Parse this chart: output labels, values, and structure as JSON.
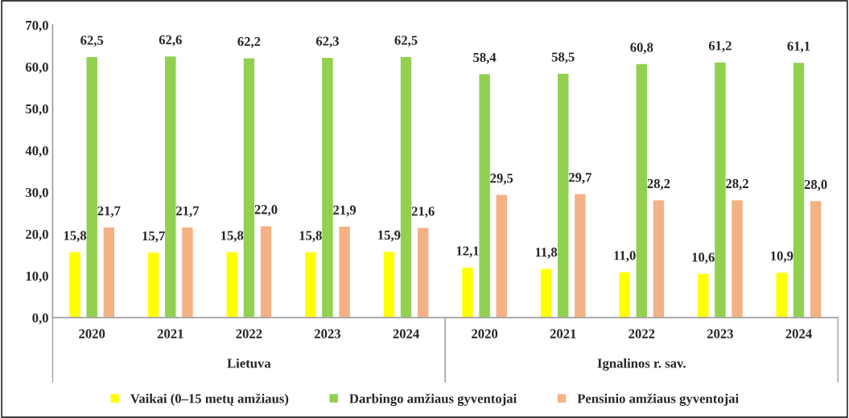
{
  "chart_data": {
    "type": "bar",
    "categories": [
      "2020",
      "2021",
      "2022",
      "2023",
      "2024",
      "2020",
      "2021",
      "2022",
      "2023",
      "2024"
    ],
    "annotations": [
      "Lietuva",
      "Ignalinos r. sav."
    ],
    "series": [
      {
        "name": "Vaikai (0–15 metų amžiaus)",
        "color": "#ffff00",
        "values": [
          15.8,
          15.7,
          15.8,
          15.8,
          15.9,
          12.1,
          11.8,
          11.0,
          10.6,
          10.9
        ],
        "value_labels": [
          "15,8",
          "15,7",
          "15,8",
          "15,8",
          "15,9",
          "12,1",
          "11,8",
          "11,0",
          "10,6",
          "10,9"
        ]
      },
      {
        "name": "Darbingo amžiaus gyventojai",
        "color": "#92d050",
        "values": [
          62.5,
          62.6,
          62.2,
          62.3,
          62.5,
          58.4,
          58.5,
          60.8,
          61.2,
          61.1
        ],
        "value_labels": [
          "62,5",
          "62,6",
          "62,2",
          "62,3",
          "62,5",
          "58,4",
          "58,5",
          "60,8",
          "61,2",
          "61,1"
        ]
      },
      {
        "name": "Pensinio amžiaus gyventojai",
        "color": "#f4b183",
        "values": [
          21.7,
          21.7,
          22.0,
          21.9,
          21.6,
          29.5,
          29.7,
          28.2,
          28.2,
          28.0
        ],
        "value_labels": [
          "21,7",
          "21,7",
          "22,0",
          "21,9",
          "21,6",
          "29,5",
          "29,7",
          "28,2",
          "28,2",
          "28,0"
        ]
      }
    ],
    "ylim": [
      0,
      70
    ],
    "yticks": [
      {
        "value": 0,
        "label": "0,0"
      },
      {
        "value": 10,
        "label": "10,0"
      },
      {
        "value": 20,
        "label": "20,0"
      },
      {
        "value": 30,
        "label": "30,0"
      },
      {
        "value": 40,
        "label": "40,0"
      },
      {
        "value": 50,
        "label": "50,0"
      },
      {
        "value": 60,
        "label": "60,0"
      },
      {
        "value": 70,
        "label": "70,0"
      }
    ],
    "legend": "bottom",
    "grid": false
  }
}
